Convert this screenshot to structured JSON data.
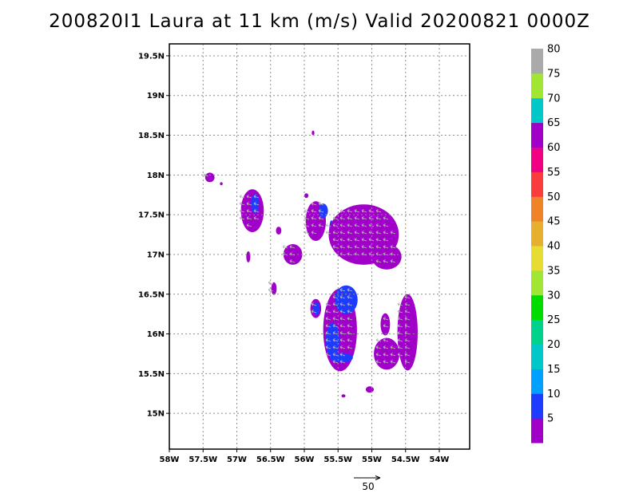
{
  "title": "200820I1 Laura at 11 km (m/s) Valid 20200821 0000Z",
  "chart_data": {
    "type": "map-wind-field",
    "title": "200820I1 Laura at 11 km (m/s) Valid 20200821 0000Z",
    "lon_range": [
      -58,
      -53.55
    ],
    "lat_range": [
      14.55,
      19.65
    ],
    "lon_ticks": [
      {
        "value": -58,
        "label": "58W"
      },
      {
        "value": -57.5,
        "label": "57.5W"
      },
      {
        "value": -57,
        "label": "57W"
      },
      {
        "value": -56.5,
        "label": "56.5W"
      },
      {
        "value": -56,
        "label": "56W"
      },
      {
        "value": -55.5,
        "label": "55.5W"
      },
      {
        "value": -55,
        "label": "55W"
      },
      {
        "value": -54.5,
        "label": "54.5W"
      },
      {
        "value": -54,
        "label": "54W"
      }
    ],
    "lat_ticks": [
      {
        "value": 15,
        "label": "15N"
      },
      {
        "value": 15.5,
        "label": "15.5N"
      },
      {
        "value": 16,
        "label": "16N"
      },
      {
        "value": 16.5,
        "label": "16.5N"
      },
      {
        "value": 17,
        "label": "17N"
      },
      {
        "value": 17.5,
        "label": "17.5N"
      },
      {
        "value": 18,
        "label": "18N"
      },
      {
        "value": 18.5,
        "label": "18.5N"
      },
      {
        "value": 19,
        "label": "19N"
      },
      {
        "value": 19.5,
        "label": "19.5N"
      }
    ],
    "grid": true,
    "colorbar": {
      "levels": [
        5,
        10,
        15,
        20,
        25,
        30,
        35,
        40,
        45,
        50,
        55,
        60,
        65,
        70,
        75,
        80
      ],
      "colors": [
        "#a000c8",
        "#1e3cff",
        "#00a0ff",
        "#00c8c8",
        "#00d28c",
        "#00dc00",
        "#a0e632",
        "#e6dc32",
        "#e6af2d",
        "#f08228",
        "#fa3c3c",
        "#f00082",
        "#a000c8",
        "#00c8c8",
        "#a0e632",
        "#aaaaaa"
      ]
    },
    "reference_vector": {
      "value": 50,
      "label": "50"
    },
    "regions": [
      {
        "lon": -57.4,
        "lat": 17.97,
        "rlon": 0.07,
        "rlat": 0.06,
        "level": 5
      },
      {
        "lon": -57.23,
        "lat": 17.89,
        "rlon": 0.02,
        "rlat": 0.02,
        "level": 5
      },
      {
        "lon": -56.77,
        "lat": 17.55,
        "rlon": 0.17,
        "rlat": 0.27,
        "level": 5
      },
      {
        "lon": -56.73,
        "lat": 17.64,
        "rlon": 0.06,
        "rlat": 0.12,
        "level": 10
      },
      {
        "lon": -56.38,
        "lat": 17.3,
        "rlon": 0.04,
        "rlat": 0.05,
        "level": 5
      },
      {
        "lon": -56.17,
        "lat": 17.0,
        "rlon": 0.14,
        "rlat": 0.13,
        "level": 5
      },
      {
        "lon": -56.83,
        "lat": 16.97,
        "rlon": 0.03,
        "rlat": 0.07,
        "level": 5
      },
      {
        "lon": -56.45,
        "lat": 16.57,
        "rlon": 0.04,
        "rlat": 0.08,
        "level": 5
      },
      {
        "lon": -55.97,
        "lat": 17.74,
        "rlon": 0.03,
        "rlat": 0.03,
        "level": 5
      },
      {
        "lon": -55.87,
        "lat": 18.53,
        "rlon": 0.02,
        "rlat": 0.03,
        "level": 5
      },
      {
        "lon": -55.83,
        "lat": 17.42,
        "rlon": 0.15,
        "rlat": 0.25,
        "level": 5
      },
      {
        "lon": -55.72,
        "lat": 17.55,
        "rlon": 0.07,
        "rlat": 0.09,
        "level": 10
      },
      {
        "lon": -55.6,
        "lat": 17.31,
        "rlon": 0.03,
        "rlat": 0.12,
        "level": 10
      },
      {
        "lon": -55.12,
        "lat": 17.25,
        "rlon": 0.52,
        "rlat": 0.38,
        "level": 5
      },
      {
        "lon": -54.78,
        "lat": 16.97,
        "rlon": 0.22,
        "rlat": 0.16,
        "level": 5
      },
      {
        "lon": -55.47,
        "lat": 16.05,
        "rlon": 0.25,
        "rlat": 0.52,
        "level": 5
      },
      {
        "lon": -55.38,
        "lat": 16.43,
        "rlon": 0.17,
        "rlat": 0.18,
        "level": 10
      },
      {
        "lon": -55.58,
        "lat": 15.92,
        "rlon": 0.1,
        "rlat": 0.22,
        "level": 10
      },
      {
        "lon": -55.45,
        "lat": 15.7,
        "rlon": 0.17,
        "rlat": 0.06,
        "level": 10
      },
      {
        "lon": -55.83,
        "lat": 16.32,
        "rlon": 0.08,
        "rlat": 0.12,
        "level": 5
      },
      {
        "lon": -55.82,
        "lat": 16.32,
        "rlon": 0.05,
        "rlat": 0.08,
        "level": 10
      },
      {
        "lon": -54.47,
        "lat": 16.02,
        "rlon": 0.15,
        "rlat": 0.48,
        "level": 5
      },
      {
        "lon": -54.78,
        "lat": 15.75,
        "rlon": 0.19,
        "rlat": 0.2,
        "level": 5
      },
      {
        "lon": -54.8,
        "lat": 16.12,
        "rlon": 0.07,
        "rlat": 0.14,
        "level": 5
      },
      {
        "lon": -55.03,
        "lat": 15.3,
        "rlon": 0.06,
        "rlat": 0.04,
        "level": 5
      },
      {
        "lon": -55.42,
        "lat": 15.22,
        "rlon": 0.03,
        "rlat": 0.02,
        "level": 5
      }
    ]
  }
}
